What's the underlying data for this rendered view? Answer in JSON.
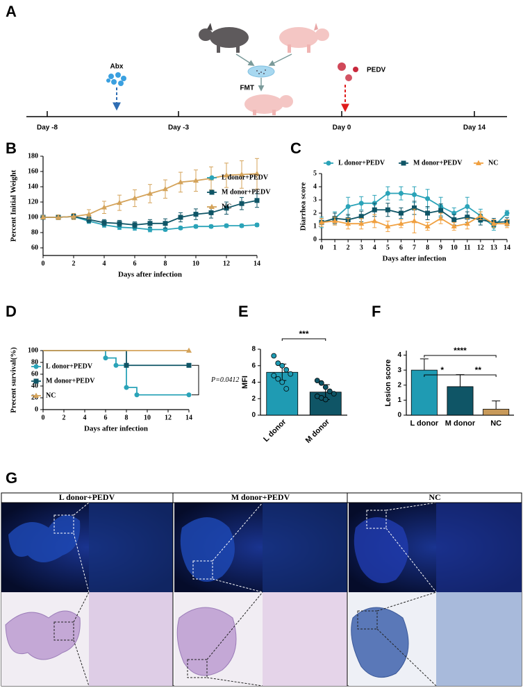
{
  "panel_labels": [
    "A",
    "B",
    "C",
    "D",
    "E",
    "F",
    "G"
  ],
  "timeline": {
    "days": [
      "Day -8",
      "Day -3",
      "Day 0",
      "Day 14"
    ],
    "treatments": [
      "Abx",
      "FMT",
      "PEDV"
    ]
  },
  "chart_data": [
    {
      "type": "line",
      "xlabel": "Days after infection",
      "ylabel": "Percent Initial Weight",
      "x": [
        0,
        1,
        2,
        3,
        4,
        5,
        6,
        7,
        8,
        9,
        10,
        11,
        12,
        13,
        14
      ],
      "xlim": [
        0,
        14
      ],
      "xticks": [
        0,
        2,
        4,
        6,
        8,
        10,
        12,
        14
      ],
      "ylim": [
        50,
        180
      ],
      "yticks": [
        60,
        80,
        100,
        120,
        140,
        160,
        180
      ],
      "legend": "right",
      "series": [
        {
          "name": "L donor+PEDV",
          "color": "#2aa3b8",
          "marker": "circle",
          "values": [
            100,
            100,
            101,
            95,
            90,
            87,
            86,
            84,
            84,
            86,
            88,
            88,
            89,
            89,
            90
          ],
          "errors": [
            2,
            3,
            3,
            3,
            3,
            3,
            3,
            3,
            2,
            2,
            2,
            2,
            2,
            2,
            2
          ]
        },
        {
          "name": "M donor+PEDV",
          "color": "#0f5566",
          "marker": "square",
          "values": [
            100,
            100,
            101,
            97,
            93,
            92,
            90,
            92,
            92,
            100,
            104,
            106,
            112,
            118,
            122
          ],
          "errors": [
            2,
            3,
            3,
            4,
            4,
            4,
            4,
            5,
            6,
            6,
            7,
            7,
            8,
            8,
            9
          ]
        },
        {
          "name": "NC",
          "color": "#d4a35a",
          "marker": "triangle",
          "values": [
            100,
            100,
            101,
            104,
            113,
            119,
            125,
            131,
            137,
            146,
            148,
            151,
            155,
            156,
            157
          ],
          "errors": [
            2,
            3,
            4,
            6,
            8,
            10,
            11,
            12,
            12,
            13,
            14,
            15,
            16,
            18,
            20
          ]
        }
      ]
    },
    {
      "type": "line",
      "xlabel": "Days after infection",
      "ylabel": "Diarrhea score",
      "x": [
        0,
        1,
        2,
        3,
        4,
        5,
        6,
        7,
        8,
        9,
        10,
        11,
        12,
        13,
        14
      ],
      "xlim": [
        0,
        14
      ],
      "xticks": [
        0,
        1,
        2,
        3,
        4,
        5,
        6,
        7,
        8,
        9,
        10,
        11,
        12,
        13,
        14
      ],
      "ylim": [
        0,
        5
      ],
      "yticks": [
        0,
        1,
        2,
        3,
        4,
        5
      ],
      "legend": "top",
      "series": [
        {
          "name": "L donor+PEDV",
          "color": "#2aa3b8",
          "marker": "circle",
          "values": [
            1.3,
            1.6,
            2.5,
            2.75,
            2.75,
            3.5,
            3.5,
            3.4,
            3.1,
            2.5,
            2.0,
            2.5,
            1.8,
            1.0,
            2.0
          ],
          "errors": [
            0.4,
            0.5,
            0.7,
            0.5,
            0.6,
            0.5,
            0.5,
            0.6,
            0.7,
            0.7,
            0.4,
            0.7,
            0.5,
            0.3,
            0.2
          ]
        },
        {
          "name": "M donor+PEDV",
          "color": "#0f5566",
          "marker": "square",
          "values": [
            1.3,
            1.6,
            1.5,
            1.75,
            2.25,
            2.25,
            2.0,
            2.4,
            2.0,
            2.2,
            1.5,
            1.7,
            1.5,
            1.3,
            1.35
          ],
          "errors": [
            0.3,
            0.4,
            0.4,
            0.4,
            0.5,
            0.5,
            0.4,
            0.5,
            0.5,
            0.5,
            0.4,
            0.4,
            0.4,
            0.3,
            0.3
          ]
        },
        {
          "name": "NC",
          "color": "#f0a040",
          "marker": "triangle",
          "values": [
            1.3,
            1.4,
            1.2,
            1.2,
            1.4,
            1.0,
            1.2,
            1.4,
            1.0,
            1.6,
            1.0,
            1.2,
            1.8,
            1.2,
            1.2
          ],
          "errors": [
            0.3,
            0.3,
            0.4,
            0.4,
            0.5,
            0.4,
            0.3,
            0.9,
            0.3,
            0.4,
            0.3,
            0.4,
            0.3,
            0.3,
            0.3
          ]
        }
      ]
    },
    {
      "type": "step",
      "xlabel": "Days after infection",
      "ylabel": "Precent survival(%)",
      "annotation": "P=0.0412",
      "xlim": [
        0,
        14
      ],
      "xticks": [
        0,
        2,
        4,
        6,
        8,
        10,
        12,
        14
      ],
      "ylim": [
        0,
        100
      ],
      "yticks": [
        0,
        20,
        40,
        60,
        80,
        100
      ],
      "legend": "left",
      "series": [
        {
          "name": "L donor+PEDV",
          "color": "#2aa3b8",
          "marker": "circle",
          "x": [
            0,
            6,
            7,
            8,
            9,
            14
          ],
          "values": [
            100,
            87.5,
            75,
            37.5,
            25,
            25
          ]
        },
        {
          "name": "M donor+PEDV",
          "color": "#0f5566",
          "marker": "square",
          "x": [
            0,
            8,
            14
          ],
          "values": [
            100,
            75,
            75
          ]
        },
        {
          "name": "NC",
          "color": "#d4a35a",
          "marker": "triangle",
          "x": [
            0,
            14
          ],
          "values": [
            100,
            100
          ]
        }
      ]
    },
    {
      "type": "bar",
      "ylabel": "MFI",
      "categories": [
        "L donor",
        "M donor"
      ],
      "values": [
        5.2,
        2.8
      ],
      "errors": [
        1.0,
        0.9
      ],
      "error_bars": "both",
      "colors": [
        "#1f9bb3",
        "#0f5566"
      ],
      "points": [
        [
          7.2,
          6.3,
          6.0,
          5.5,
          5.0,
          4.8,
          4.4,
          4.0,
          3.2
        ],
        [
          4.2,
          3.9,
          3.4,
          2.9,
          2.6,
          2.3,
          2.1,
          1.9
        ]
      ],
      "ylim": [
        0,
        8
      ],
      "yticks": [
        0,
        2,
        4,
        6,
        8
      ],
      "xtick_rotation": 45,
      "significance": [
        {
          "label": "***",
          "between": [
            0,
            1
          ]
        }
      ]
    },
    {
      "type": "bar",
      "ylabel": "Lesion score",
      "categories": [
        "L donor",
        "M donor",
        "NC"
      ],
      "values": [
        3.0,
        1.9,
        0.4
      ],
      "errors": [
        0.75,
        0.8,
        0.55
      ],
      "error_bars": "up",
      "colors": [
        "#1f9bb3",
        "#0f5566",
        "#c89a5a"
      ],
      "ylim": [
        0,
        4.3
      ],
      "yticks": [
        0,
        1,
        2,
        3,
        4
      ],
      "xtick_rotation": 0,
      "significance": [
        {
          "label": "*",
          "between": [
            0,
            1
          ]
        },
        {
          "label": "**",
          "between": [
            1,
            2
          ]
        },
        {
          "label": "****",
          "between": [
            0,
            2
          ]
        }
      ]
    }
  ],
  "histology": {
    "groups": [
      "L donor+PEDV",
      "M donor+PEDV",
      "NC"
    ]
  }
}
